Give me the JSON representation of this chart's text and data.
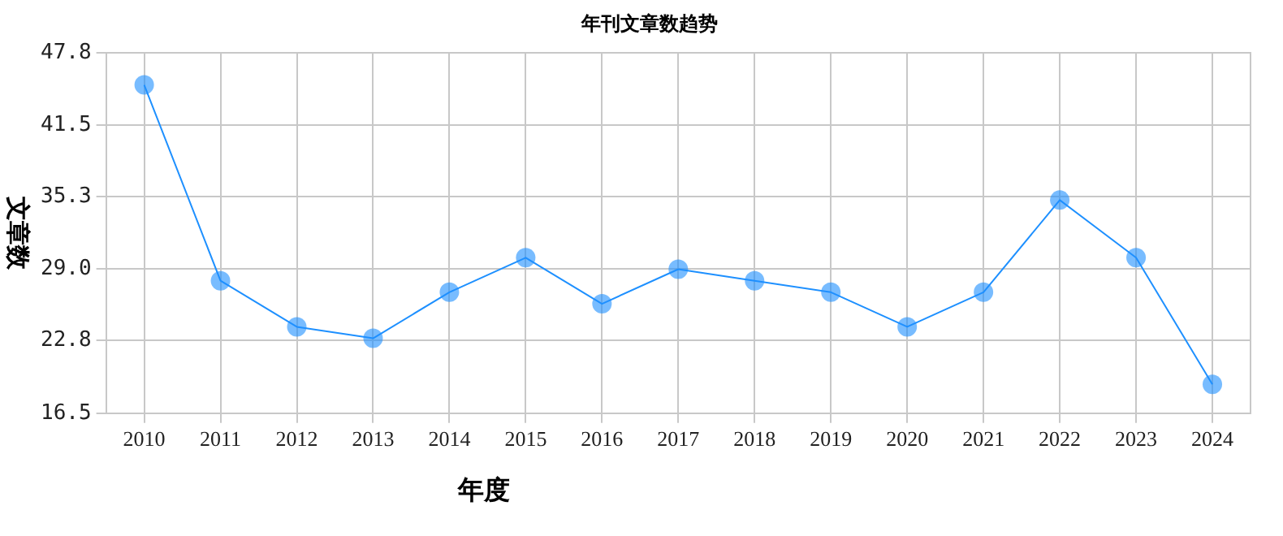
{
  "chart_data": {
    "type": "line",
    "title": "年刊文章数趋势",
    "xlabel": "年度",
    "ylabel": "文章数",
    "categories": [
      "2010",
      "2011",
      "2012",
      "2013",
      "2014",
      "2015",
      "2016",
      "2017",
      "2018",
      "2019",
      "2020",
      "2021",
      "2022",
      "2023",
      "2024"
    ],
    "series": [
      {
        "color": "#1e90ff",
        "values": [
          45,
          28,
          24,
          23,
          27,
          30,
          26,
          29,
          28,
          27,
          24,
          27,
          35,
          30,
          19
        ]
      }
    ],
    "ylim": [
      16.5,
      47.8
    ],
    "yticks": [
      16.5,
      22.8,
      {
        "value": 29,
        "label": "29.0"
      },
      35.3,
      41.5,
      47.8
    ],
    "grid": true,
    "legend": false,
    "marker": "circle",
    "line_style": "solid"
  }
}
